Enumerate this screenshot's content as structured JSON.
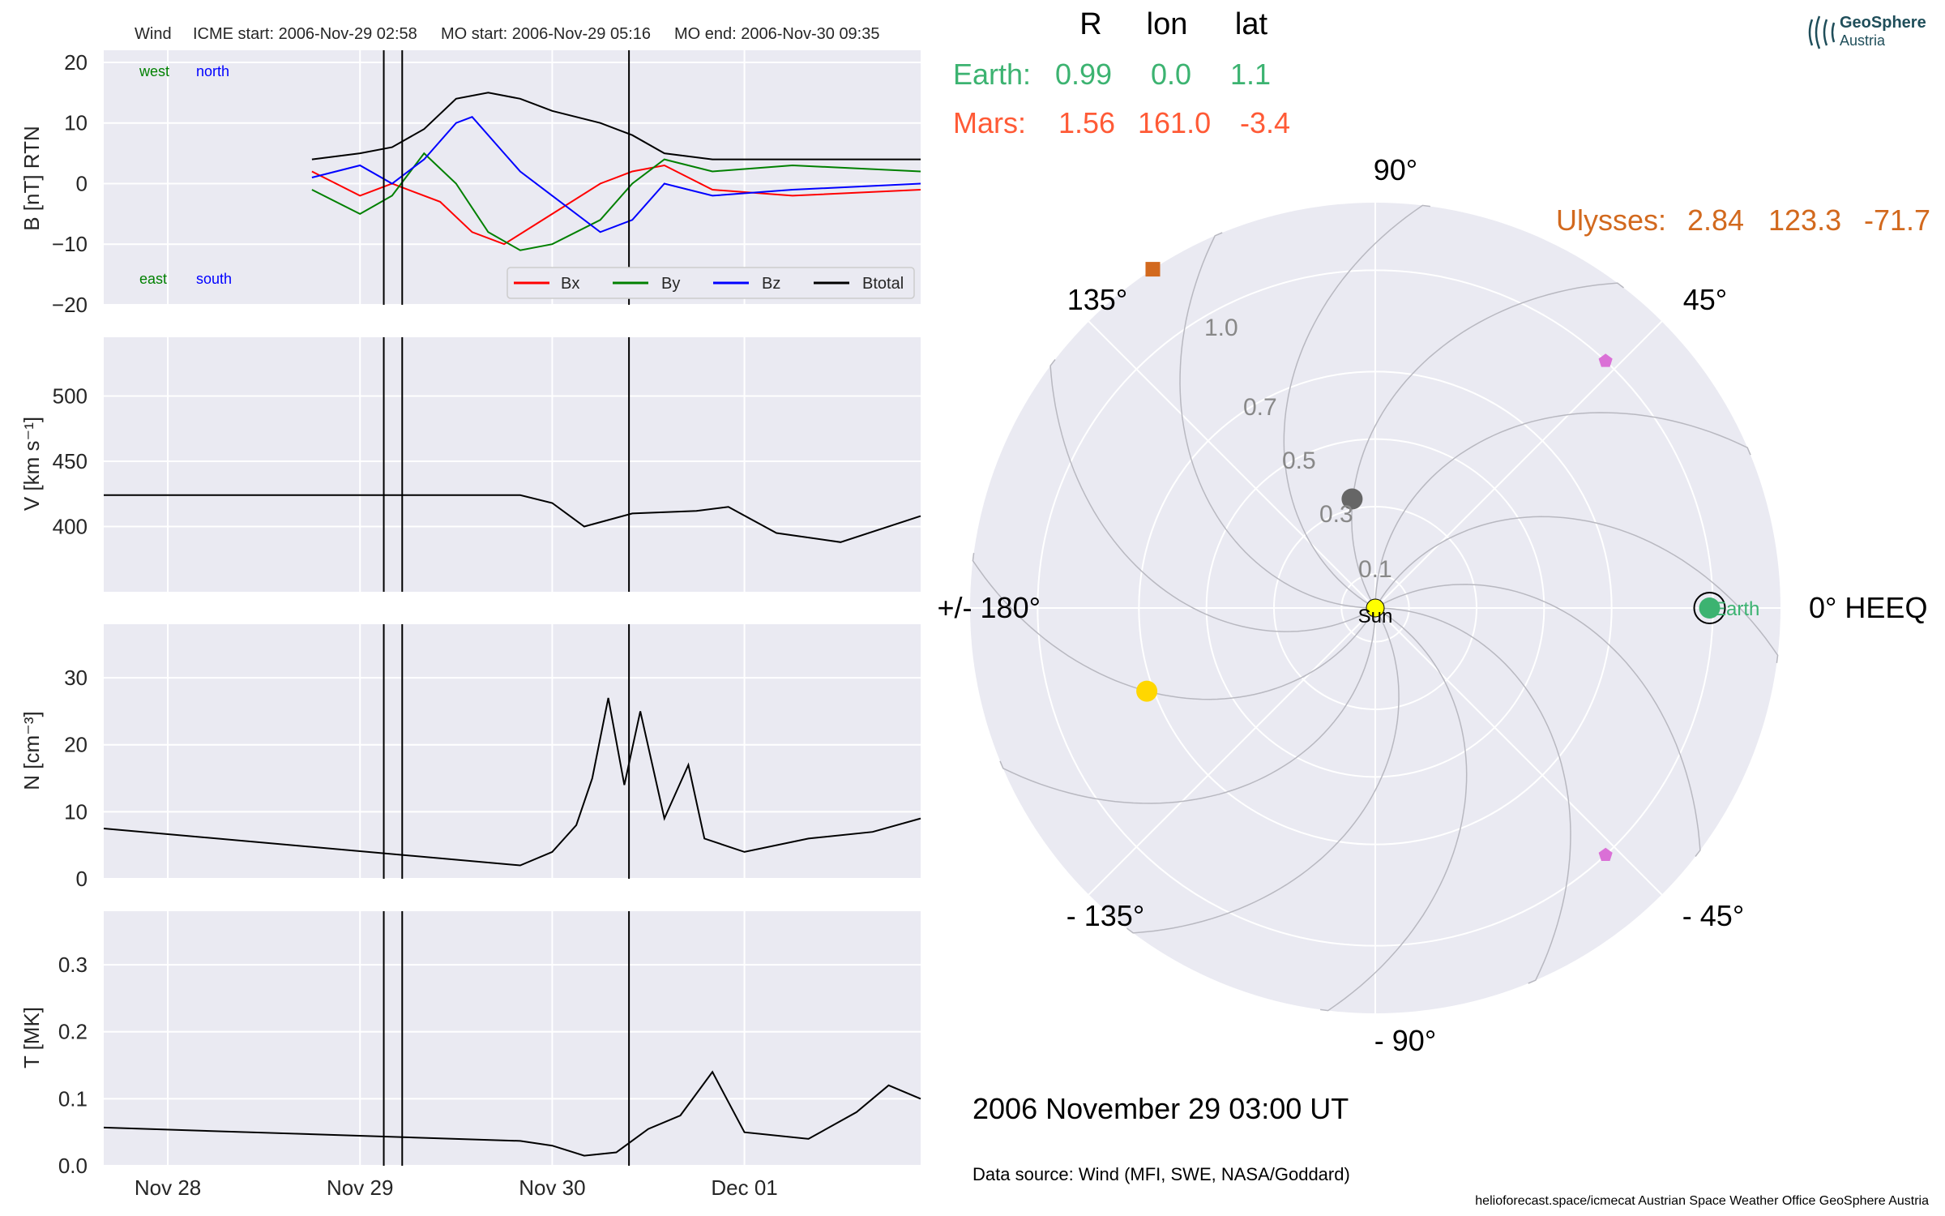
{
  "header": {
    "spacecraft": "Wind",
    "icme_start": "ICME start: 2006-Nov-29 02:58",
    "mo_start": "MO start: 2006-Nov-29 05:16",
    "mo_end": "MO end: 2006-Nov-30 09:35"
  },
  "logo": {
    "line1": "GeoSphere",
    "line2": "Austria"
  },
  "colors": {
    "panel_bg": "#eaeaf2",
    "bx": "#ff0000",
    "by": "#008000",
    "bz": "#0000ff",
    "btotal": "#000000",
    "earth": "#3cb371",
    "mars": "#ff5a36",
    "ulysses": "#d2691e",
    "sun": "#ffff00",
    "venus": "#ffd700",
    "mercury": "#666666",
    "stereo": "#da70d6"
  },
  "chart_data": [
    {
      "type": "line",
      "panel": "magnetic_field",
      "ylabel": "B [nT] RTN",
      "ylim": [
        -20,
        22
      ],
      "yticks": [
        "20",
        "10",
        "0",
        "−10",
        "−20"
      ],
      "xlim": [
        "2006-11-27 16:00",
        "2006-12-01 22:00"
      ],
      "xticks": [
        "Nov 28",
        "Nov 29",
        "Nov 30",
        "Dec 01"
      ],
      "corner_labels": {
        "west": "west",
        "north": "north",
        "east": "east",
        "south": "south"
      },
      "legend": {
        "placement": "lower right",
        "entries": [
          "Bx",
          "By",
          "Bz",
          "Btotal"
        ]
      },
      "series": [
        {
          "name": "Bx",
          "x": [
            "2006-11-28 18:00",
            "2006-11-29 00:00",
            "2006-11-29 04:00",
            "2006-11-29 10:00",
            "2006-11-29 14:00",
            "2006-11-29 18:00",
            "2006-11-30 00:00",
            "2006-11-30 06:00",
            "2006-11-30 10:00",
            "2006-11-30 14:00",
            "2006-11-30 20:00",
            "2006-12-01 06:00",
            "2006-12-01 22:00"
          ],
          "values": [
            2,
            -2,
            0,
            -3,
            -8,
            -10,
            -5,
            0,
            2,
            3,
            -1,
            -2,
            -1
          ]
        },
        {
          "name": "By",
          "x": [
            "2006-11-28 18:00",
            "2006-11-29 00:00",
            "2006-11-29 04:00",
            "2006-11-29 08:00",
            "2006-11-29 12:00",
            "2006-11-29 16:00",
            "2006-11-29 20:00",
            "2006-11-30 00:00",
            "2006-11-30 06:00",
            "2006-11-30 10:00",
            "2006-11-30 14:00",
            "2006-11-30 20:00",
            "2006-12-01 06:00",
            "2006-12-01 22:00"
          ],
          "values": [
            -1,
            -5,
            -2,
            5,
            0,
            -8,
            -11,
            -10,
            -6,
            0,
            4,
            2,
            3,
            2
          ]
        },
        {
          "name": "Bz",
          "x": [
            "2006-11-28 18:00",
            "2006-11-29 00:00",
            "2006-11-29 04:00",
            "2006-11-29 08:00",
            "2006-11-29 12:00",
            "2006-11-29 14:00",
            "2006-11-29 18:00",
            "2006-11-29 20:00",
            "2006-11-30 00:00",
            "2006-11-30 06:00",
            "2006-11-30 10:00",
            "2006-11-30 14:00",
            "2006-11-30 20:00",
            "2006-12-01 06:00",
            "2006-12-01 22:00"
          ],
          "values": [
            1,
            3,
            0,
            4,
            10,
            11,
            5,
            2,
            -2,
            -8,
            -6,
            0,
            -2,
            -1,
            0
          ]
        },
        {
          "name": "Btotal",
          "x": [
            "2006-11-28 18:00",
            "2006-11-29 00:00",
            "2006-11-29 04:00",
            "2006-11-29 08:00",
            "2006-11-29 12:00",
            "2006-11-29 16:00",
            "2006-11-29 20:00",
            "2006-11-30 00:00",
            "2006-11-30 06:00",
            "2006-11-30 10:00",
            "2006-11-30 14:00",
            "2006-11-30 20:00",
            "2006-12-01 06:00",
            "2006-12-01 22:00"
          ],
          "values": [
            4,
            5,
            6,
            9,
            14,
            15,
            14,
            12,
            10,
            8,
            5,
            4,
            4,
            4
          ]
        }
      ]
    },
    {
      "type": "line",
      "panel": "speed",
      "ylabel": "V [km s⁻¹]",
      "ylim": [
        350,
        545
      ],
      "yticks": [
        "500",
        "450",
        "400"
      ],
      "series": [
        {
          "name": "V",
          "x": [
            "2006-11-27 16:00",
            "2006-11-29 20:00",
            "2006-11-30 00:00",
            "2006-11-30 04:00",
            "2006-11-30 10:00",
            "2006-11-30 18:00",
            "2006-11-30 22:00",
            "2006-12-01 04:00",
            "2006-12-01 12:00",
            "2006-12-01 22:00"
          ],
          "values": [
            424,
            424,
            418,
            400,
            410,
            412,
            415,
            395,
            388,
            408
          ]
        }
      ]
    },
    {
      "type": "line",
      "panel": "density",
      "ylabel": "N [cm⁻³]",
      "ylim": [
        0,
        38
      ],
      "yticks": [
        "30",
        "20",
        "10",
        "0"
      ],
      "series": [
        {
          "name": "N",
          "x": [
            "2006-11-27 16:00",
            "2006-11-29 20:00",
            "2006-11-30 00:00",
            "2006-11-30 03:00",
            "2006-11-30 05:00",
            "2006-11-30 07:00",
            "2006-11-30 09:00",
            "2006-11-30 11:00",
            "2006-11-30 14:00",
            "2006-11-30 17:00",
            "2006-11-30 19:00",
            "2006-12-01 00:00",
            "2006-12-01 08:00",
            "2006-12-01 16:00",
            "2006-12-01 22:00"
          ],
          "values": [
            7.5,
            2,
            4,
            8,
            15,
            27,
            14,
            25,
            9,
            17,
            6,
            4,
            6,
            7,
            9
          ]
        }
      ]
    },
    {
      "type": "line",
      "panel": "temperature",
      "ylabel": "T [MK]",
      "ylim": [
        0,
        0.38
      ],
      "yticks": [
        "0.3",
        "0.2",
        "0.1",
        "0.0"
      ],
      "series": [
        {
          "name": "T",
          "x": [
            "2006-11-27 16:00",
            "2006-11-29 20:00",
            "2006-11-30 00:00",
            "2006-11-30 04:00",
            "2006-11-30 08:00",
            "2006-11-30 12:00",
            "2006-11-30 16:00",
            "2006-11-30 20:00",
            "2006-12-01 00:00",
            "2006-12-01 08:00",
            "2006-12-01 14:00",
            "2006-12-01 18:00",
            "2006-12-01 22:00"
          ],
          "values": [
            0.057,
            0.037,
            0.03,
            0.015,
            0.02,
            0.055,
            0.075,
            0.14,
            0.05,
            0.04,
            0.08,
            0.12,
            0.1
          ]
        }
      ]
    },
    {
      "type": "scatter",
      "panel": "polar_orbit_plot",
      "theta_ticks": [
        "90°",
        "45°",
        "0° HEEQ",
        "- 45°",
        "- 90°",
        "- 135°",
        "+/- 180°",
        "135°"
      ],
      "r_ticks": [
        "0.1",
        "0.3",
        "0.5",
        "0.7",
        "1.0"
      ],
      "table_header": [
        "R",
        "lon",
        "lat"
      ],
      "rows": [
        {
          "name": "Earth:",
          "R": "0.99",
          "lon": "0.0",
          "lat": "1.1"
        },
        {
          "name": "Mars:",
          "R": "1.56",
          "lon": "161.0",
          "lat": "-3.4"
        },
        {
          "name": "Ulysses:",
          "R": "2.84",
          "lon": "123.3",
          "lat": "-71.7"
        }
      ],
      "objects": [
        {
          "name": "Sun",
          "r": 0,
          "lon": 0
        },
        {
          "name": "Earth",
          "r": 0.99,
          "lon": 0.0
        },
        {
          "name": "Mercury",
          "r": 0.33,
          "lon": 102
        },
        {
          "name": "Venus",
          "r": 0.72,
          "lon": -160
        },
        {
          "name": "Ulysses",
          "r": 2.84,
          "lon": 123.3
        },
        {
          "name": "STEREO-A",
          "r": 1.0,
          "lon": 47
        },
        {
          "name": "STEREO-B",
          "r": 1.0,
          "lon": -47
        }
      ]
    }
  ],
  "timestamp": "2006 November 29  03:00 UT",
  "data_source": "Data source: Wind (MFI, SWE, NASA/Goddard)",
  "footer": "helioforecast.space/icmecat   Austrian Space Weather Office   GeoSphere Austria"
}
